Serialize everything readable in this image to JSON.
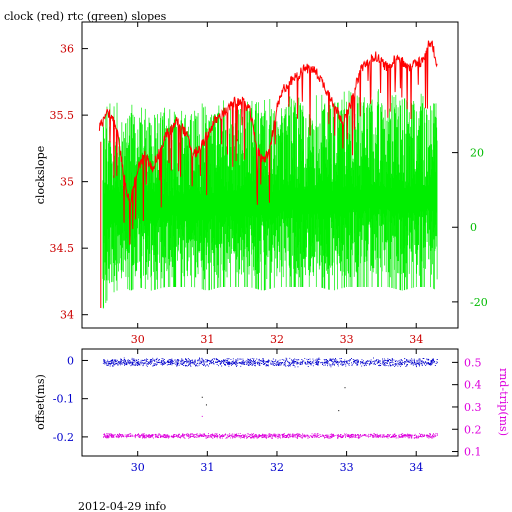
{
  "header": {
    "title": "clock (red) rtc (green) slopes"
  },
  "footer": {
    "caption": "2012-04-29 info"
  },
  "chart_data": [
    {
      "type": "line",
      "title": "clock (red) rtc (green) slopes",
      "xlabel": "",
      "ylabel": "clockslope",
      "xlim": [
        29.2,
        34.6
      ],
      "ylim": [
        33.9,
        36.2
      ],
      "y2lim": [
        -27,
        55
      ],
      "x_ticks": [
        30,
        31,
        32,
        33,
        34
      ],
      "x_tick_labels": [
        "30",
        "31",
        "32",
        "33",
        "34"
      ],
      "y_ticks": [
        34,
        34.5,
        35,
        35.5,
        36
      ],
      "y_tick_labels": [
        "34",
        "34.5",
        "35",
        "35.5",
        "36"
      ],
      "y2_ticks": [
        -20,
        0,
        20
      ],
      "y2_tick_labels": [
        "-20",
        "0",
        "20"
      ],
      "colors": {
        "clock": "#ff0000",
        "rtc": "#00ee00",
        "axis_left": "#cc0000",
        "axis_right": "#00bb00"
      },
      "series": [
        {
          "axis": "left",
          "x": [
            29.45,
            29.5,
            29.55,
            29.6,
            29.7,
            29.8,
            29.85,
            29.9,
            30.0,
            30.1,
            30.2,
            30.3,
            30.4,
            30.5,
            30.55,
            30.6,
            30.7,
            30.8,
            30.9,
            31.0,
            31.1,
            31.2,
            31.3,
            31.4,
            31.5,
            31.6,
            31.7,
            31.75,
            31.8,
            31.9,
            32.0,
            32.1,
            32.2,
            32.3,
            32.4,
            32.5,
            32.6,
            32.7,
            32.8,
            32.9,
            32.95,
            33.0,
            33.1,
            33.2,
            33.3,
            33.4,
            33.5,
            33.6,
            33.7,
            33.8,
            33.9,
            34.0,
            34.1,
            34.15,
            34.2,
            34.25,
            34.3
          ],
          "values": [
            35.4,
            35.45,
            35.55,
            35.5,
            35.4,
            35.05,
            34.9,
            34.85,
            35.1,
            35.2,
            35.1,
            35.2,
            35.35,
            35.4,
            35.45,
            35.45,
            35.35,
            35.2,
            35.25,
            35.35,
            35.45,
            35.5,
            35.55,
            35.6,
            35.6,
            35.55,
            35.3,
            35.2,
            35.15,
            35.25,
            35.55,
            35.7,
            35.75,
            35.8,
            35.85,
            35.85,
            35.8,
            35.7,
            35.6,
            35.5,
            35.45,
            35.5,
            35.65,
            35.85,
            35.9,
            35.95,
            35.9,
            35.85,
            35.95,
            35.9,
            35.85,
            35.9,
            35.9,
            36.0,
            36.05,
            36.0,
            35.85
          ]
        }
      ],
      "rtc_band": {
        "axis": "right",
        "x": [
          29.5,
          29.6,
          29.7,
          29.8,
          29.9,
          30.0,
          30.2,
          30.4,
          30.6,
          30.8,
          31.0,
          31.2,
          31.4,
          31.6,
          31.8,
          32.0,
          32.2,
          32.4,
          32.6,
          32.8,
          33.0,
          33.2,
          33.4,
          33.6,
          33.8,
          34.0,
          34.2,
          34.3
        ],
        "low": [
          -22,
          -18,
          -17,
          -16,
          -17,
          -16,
          -17,
          -16,
          -16,
          -16,
          -17,
          -16,
          -16,
          -16,
          -17,
          -16,
          -16,
          -16,
          -16,
          -17,
          -16,
          -16,
          -16,
          -16,
          -17,
          -16,
          -16,
          -17
        ],
        "high": [
          30,
          36,
          35,
          33,
          34,
          33,
          32,
          33,
          32,
          34,
          33,
          34,
          34,
          35,
          34,
          35,
          36,
          35,
          36,
          36,
          37,
          36,
          38,
          37,
          37,
          36,
          37,
          36
        ]
      }
    },
    {
      "type": "scatter",
      "xlabel": "",
      "ylabel": "offset(ms)",
      "y2label": "rnd-trip(ms)",
      "xlim": [
        29.2,
        34.6
      ],
      "ylim": [
        -0.25,
        0.03
      ],
      "y2lim": [
        0.08,
        0.56
      ],
      "x_ticks": [
        30,
        31,
        32,
        33,
        34
      ],
      "x_tick_labels": [
        "30",
        "31",
        "32",
        "33",
        "34"
      ],
      "y_ticks": [
        0,
        -0.1,
        -0.2
      ],
      "y_tick_labels": [
        "0",
        "-0.1",
        "-0.2"
      ],
      "y2_ticks": [
        0.5,
        0.4,
        0.3,
        0.2,
        0.1
      ],
      "y2_tick_labels": [
        "0.5",
        "0.4",
        "0.3",
        "0.2",
        "0.1"
      ],
      "colors": {
        "offset": "#0000cc",
        "rndtrip": "#dd00dd",
        "axis_left": "#0000cc",
        "axis_right": "#dd00dd"
      },
      "series": [
        {
          "name": "offset(ms)",
          "axis": "left",
          "x_range": [
            29.5,
            34.3
          ],
          "center": -0.005,
          "spread": 0.012
        },
        {
          "name": "rnd-trip(ms)",
          "axis": "right",
          "x_range": [
            29.5,
            34.3
          ],
          "center": 0.17,
          "spread": 0.012
        }
      ],
      "outliers": [
        {
          "x": 30.92,
          "y": -0.095,
          "axis": "left"
        },
        {
          "x": 30.98,
          "y": -0.115,
          "axis": "left"
        },
        {
          "x": 32.97,
          "y": -0.07,
          "axis": "left"
        },
        {
          "x": 32.88,
          "y": -0.13,
          "axis": "left"
        },
        {
          "x": 30.92,
          "y": 0.26,
          "axis": "right"
        }
      ]
    }
  ]
}
